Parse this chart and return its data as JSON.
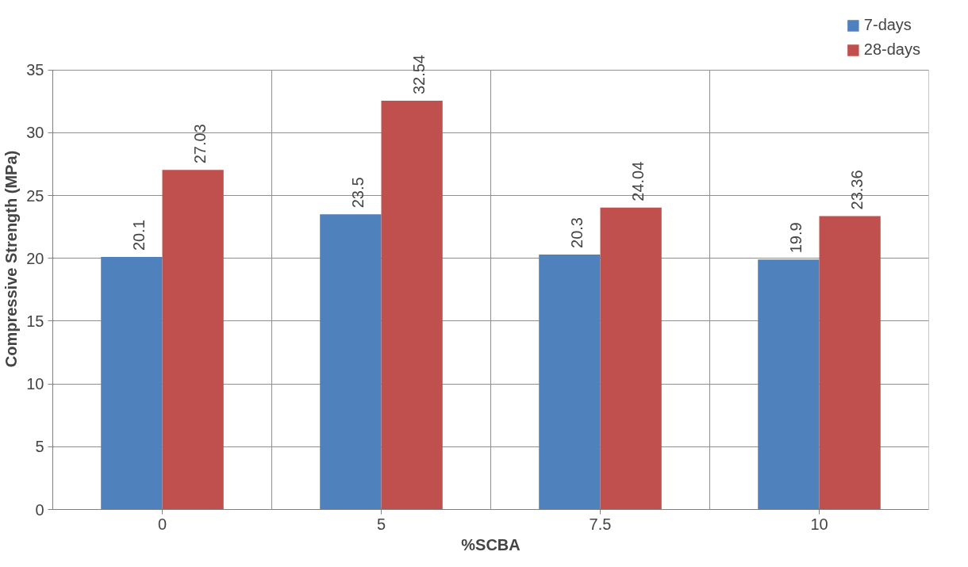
{
  "chart_data": {
    "type": "bar",
    "xlabel": "%SCBA",
    "ylabel": "Compressive Strength (MPa)",
    "categories": [
      "0",
      "5",
      "7.5",
      "10"
    ],
    "series": [
      {
        "name": "7-days",
        "color": "#4f81bd",
        "values": [
          20.1,
          23.5,
          20.3,
          19.9
        ]
      },
      {
        "name": "28-days",
        "color": "#c0504d",
        "values": [
          27.03,
          32.54,
          24.04,
          23.36
        ]
      }
    ],
    "ylim": [
      0,
      35
    ],
    "yticks": [
      0,
      5,
      10,
      15,
      20,
      25,
      30,
      35
    ],
    "grid": true,
    "legend": "top right",
    "data_labels": true
  }
}
